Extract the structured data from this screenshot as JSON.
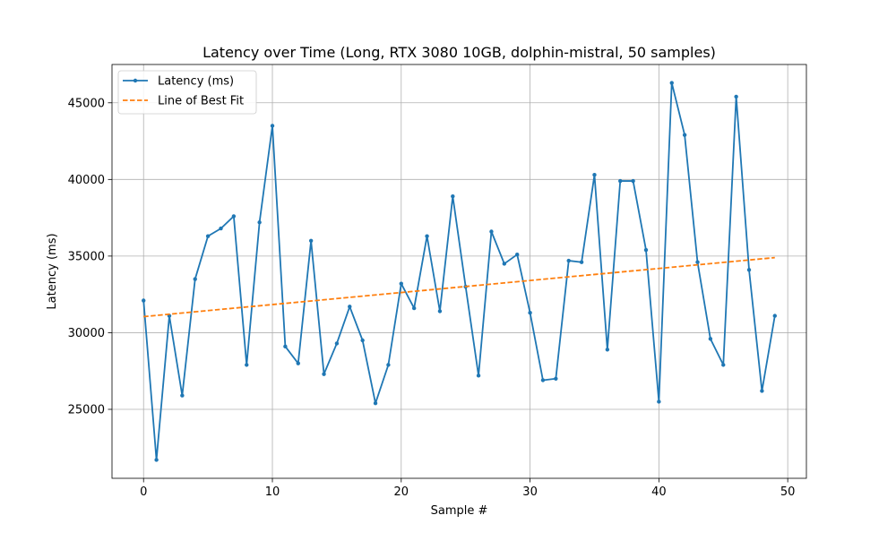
{
  "chart_data": {
    "type": "line",
    "title": "Latency over Time (Long, RTX 3080 10GB, dolphin-mistral, 50 samples)",
    "xlabel": "Sample #",
    "ylabel": "Latency (ms)",
    "xlim": [
      -2.45,
      51.45
    ],
    "ylim": [
      20500,
      47500
    ],
    "xticks": [
      0,
      10,
      20,
      30,
      40,
      50
    ],
    "yticks": [
      25000,
      30000,
      35000,
      40000,
      45000
    ],
    "grid": true,
    "legend_position": "top-left",
    "series": [
      {
        "name": "Latency (ms)",
        "color": "#1f77b4",
        "style": "solid-with-markers",
        "x": [
          0,
          1,
          2,
          3,
          4,
          5,
          6,
          7,
          8,
          9,
          10,
          11,
          12,
          13,
          14,
          15,
          16,
          17,
          18,
          19,
          20,
          21,
          22,
          23,
          24,
          25,
          26,
          27,
          28,
          29,
          30,
          31,
          32,
          33,
          34,
          35,
          36,
          37,
          38,
          39,
          40,
          41,
          42,
          43,
          44,
          45,
          46,
          47,
          48,
          49
        ],
        "values": [
          32100,
          21700,
          31100,
          25900,
          33500,
          36300,
          36800,
          37600,
          27900,
          37200,
          43500,
          29100,
          28000,
          36000,
          27300,
          29300,
          31700,
          29500,
          25400,
          27900,
          33200,
          31600,
          36300,
          31400,
          38900,
          33000,
          27200,
          36600,
          34500,
          35100,
          31300,
          26900,
          27000,
          34700,
          34600,
          40300,
          28900,
          39900,
          39900,
          35400,
          25500,
          46300,
          42900,
          34600,
          29600,
          27900,
          45400,
          34100,
          26200,
          31100
        ]
      },
      {
        "name": "Line of Best Fit",
        "color": "#ff7f0e",
        "style": "dashed",
        "x": [
          0,
          49
        ],
        "values": [
          31050,
          34900
        ]
      }
    ]
  }
}
